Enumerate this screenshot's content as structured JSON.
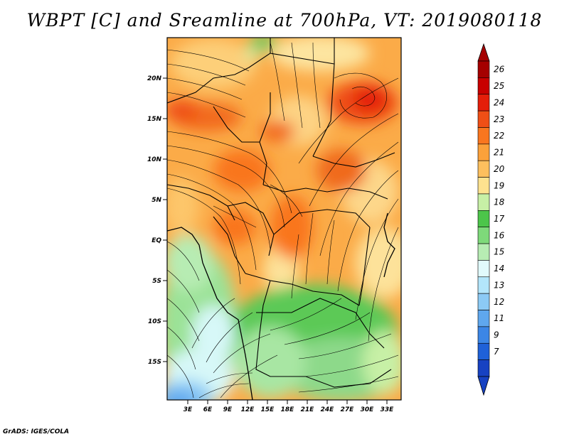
{
  "title": "WBPT [C] and Sreamline at 700hPa, VT: 2019080118",
  "credit": "GrADS: IGES/COLA",
  "map": {
    "lat_ticks": [
      "20N",
      "15N",
      "10N",
      "5N",
      "EQ",
      "5S",
      "10S",
      "15S"
    ],
    "lon_ticks": [
      "3E",
      "6E",
      "9E",
      "12E",
      "15E",
      "18E",
      "21E",
      "24E",
      "27E",
      "30E",
      "33E"
    ]
  },
  "colorbar": {
    "labels": [
      "26",
      "25",
      "24",
      "23",
      "22",
      "21",
      "20",
      "19",
      "18",
      "17",
      "16",
      "15",
      "14",
      "13",
      "12",
      "11",
      "9",
      "7"
    ],
    "colors": [
      "#a50000",
      "#c80000",
      "#e41e0a",
      "#ef4f16",
      "#f9761f",
      "#fba13a",
      "#fdbf5e",
      "#fde28f",
      "#c7f0a6",
      "#4cc54a",
      "#7ed97a",
      "#b7ecb3",
      "#e1fafc",
      "#b3e6fb",
      "#8ccaf5",
      "#5fa7ee",
      "#3c86e6",
      "#1f61d8",
      "#1742c2"
    ],
    "top_arrow_color": "#a50000",
    "bottom_arrow_color": "#1742c2"
  }
}
